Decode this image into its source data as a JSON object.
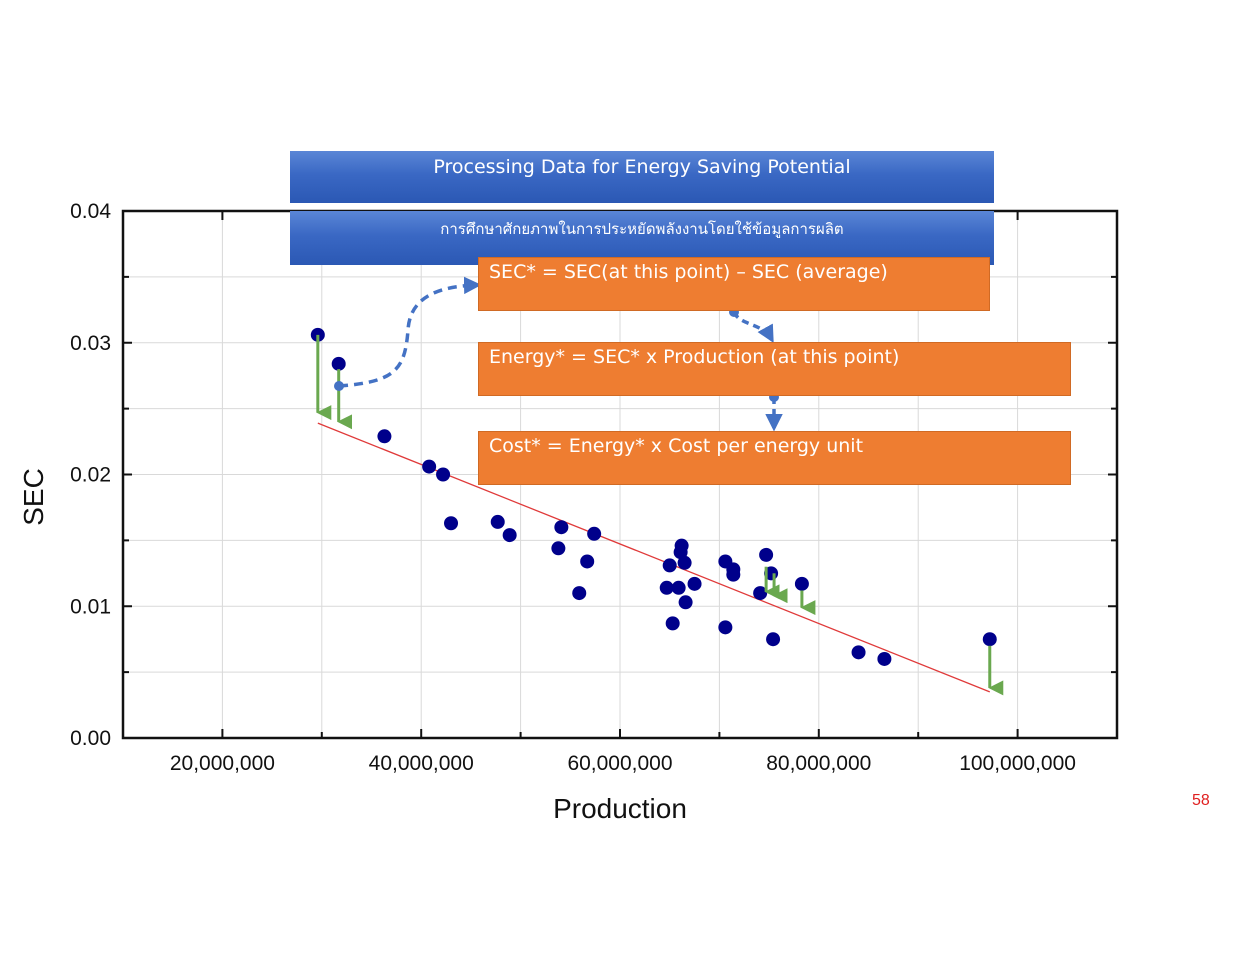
{
  "banner": {
    "title": "Processing Data for Energy Saving Potential",
    "subtitle": "การศึกษาศักยภาพในการประหยัดพลังงานโดยใช้ข้อมูลการผลิต"
  },
  "formulas": {
    "sec": "SEC* = SEC(at this point) – SEC (average)",
    "energy": "Energy* = SEC* x Production (at this point)",
    "cost": "Cost* = Energy* x Cost per energy unit"
  },
  "page_number": "58",
  "colors": {
    "points": "#00008b",
    "trend_line": "#e03a3a",
    "arrows": "#6aa84f",
    "flow_arrows": "#4472c4",
    "formula_box": "#ee7d31",
    "banner": "#3a68c4",
    "page_number": "#e02020"
  },
  "chart_data": {
    "type": "scatter",
    "title": "",
    "xlabel": "Production",
    "ylabel": "SEC",
    "xlim": [
      10000000,
      110000000
    ],
    "ylim": [
      0,
      0.04
    ],
    "x_ticks": [
      20000000,
      40000000,
      60000000,
      80000000,
      100000000
    ],
    "x_tick_labels": [
      "20,000,000",
      "40,000,000",
      "60,000,000",
      "80,000,000",
      "100,000,000"
    ],
    "y_ticks": [
      0,
      0.01,
      0.02,
      0.03,
      0.04
    ],
    "y_tick_labels": [
      "0.00",
      "0.01",
      "0.02",
      "0.03",
      "0.04"
    ],
    "grid": true,
    "points": [
      {
        "x": 29600000,
        "y": 0.0306
      },
      {
        "x": 31700000,
        "y": 0.0284
      },
      {
        "x": 36300000,
        "y": 0.0229
      },
      {
        "x": 40800000,
        "y": 0.0206
      },
      {
        "x": 42200000,
        "y": 0.02
      },
      {
        "x": 43000000,
        "y": 0.0163
      },
      {
        "x": 47700000,
        "y": 0.0164
      },
      {
        "x": 48900000,
        "y": 0.0154
      },
      {
        "x": 53800000,
        "y": 0.0144
      },
      {
        "x": 54100000,
        "y": 0.016
      },
      {
        "x": 55900000,
        "y": 0.011
      },
      {
        "x": 56700000,
        "y": 0.0134
      },
      {
        "x": 57400000,
        "y": 0.0155
      },
      {
        "x": 64700000,
        "y": 0.0114
      },
      {
        "x": 65000000,
        "y": 0.0131
      },
      {
        "x": 65300000,
        "y": 0.0087
      },
      {
        "x": 65900000,
        "y": 0.0114
      },
      {
        "x": 66100000,
        "y": 0.0141
      },
      {
        "x": 66200000,
        "y": 0.0146
      },
      {
        "x": 66500000,
        "y": 0.0133
      },
      {
        "x": 66600000,
        "y": 0.0103
      },
      {
        "x": 67500000,
        "y": 0.0117
      },
      {
        "x": 70600000,
        "y": 0.0084
      },
      {
        "x": 70600000,
        "y": 0.0134
      },
      {
        "x": 71400000,
        "y": 0.0128
      },
      {
        "x": 71400000,
        "y": 0.0124
      },
      {
        "x": 74100000,
        "y": 0.011
      },
      {
        "x": 74700000,
        "y": 0.0139
      },
      {
        "x": 75200000,
        "y": 0.0125
      },
      {
        "x": 75400000,
        "y": 0.0075
      },
      {
        "x": 78300000,
        "y": 0.0117
      },
      {
        "x": 84000000,
        "y": 0.0065
      },
      {
        "x": 86600000,
        "y": 0.006
      },
      {
        "x": 97200000,
        "y": 0.0075
      }
    ],
    "trend_line": {
      "x": [
        29600000,
        97200000
      ],
      "y": [
        0.0239,
        0.0035
      ]
    },
    "deviation_arrows": [
      {
        "x": 29600000,
        "y_from": 0.0306,
        "y_to": 0.0247
      },
      {
        "x": 31700000,
        "y_from": 0.028,
        "y_to": 0.024
      },
      {
        "x": 74700000,
        "y_from": 0.013,
        "y_to": 0.0111
      },
      {
        "x": 75500000,
        "y_from": 0.0125,
        "y_to": 0.0108
      },
      {
        "x": 78300000,
        "y_from": 0.0112,
        "y_to": 0.0099
      },
      {
        "x": 97200000,
        "y_from": 0.007,
        "y_to": 0.0038
      }
    ]
  }
}
